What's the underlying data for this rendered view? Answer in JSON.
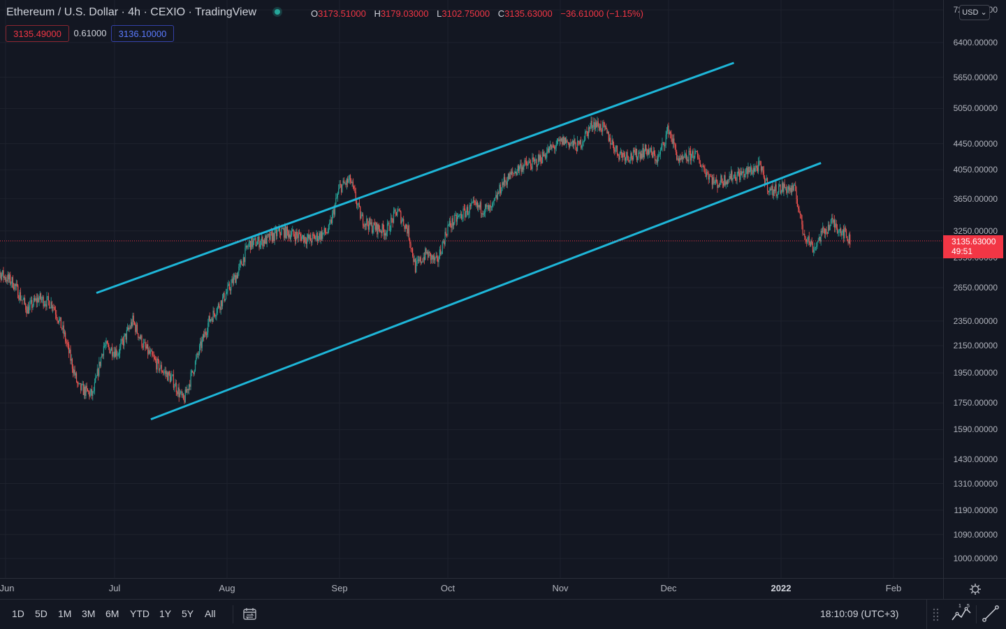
{
  "header": {
    "symbol_title": "Ethereum / U.S. Dollar · 4h · CEXIO · TradingView",
    "ohlc": {
      "o_label": "O",
      "o_value": "3173.51000",
      "h_label": "H",
      "h_value": "3179.03000",
      "l_label": "L",
      "l_value": "3102.75000",
      "c_label": "C",
      "c_value": "3135.63000",
      "change": "−36.61000 (−1.15%)"
    },
    "bid": "3135.49000",
    "spread": "0.61000",
    "ask": "3136.10000"
  },
  "price_axis": {
    "currency": "USD",
    "labels": [
      "7200.00000",
      "6400.00000",
      "5650.00000",
      "5050.00000",
      "4450.00000",
      "4050.00000",
      "3650.00000",
      "3250.00000",
      "2950.00000",
      "2650.00000",
      "2350.00000",
      "2150.00000",
      "1950.00000",
      "1750.00000",
      "1590.00000",
      "1430.00000",
      "1310.00000",
      "1190.00000",
      "1090.00000",
      "1000.00000"
    ],
    "last_price": "3135.63000",
    "countdown": "49:51"
  },
  "time_axis": {
    "labels": [
      {
        "text": "Jun",
        "bold": false
      },
      {
        "text": "Jul",
        "bold": false
      },
      {
        "text": "Aug",
        "bold": false
      },
      {
        "text": "Sep",
        "bold": false
      },
      {
        "text": "Oct",
        "bold": false
      },
      {
        "text": "Nov",
        "bold": false
      },
      {
        "text": "Dec",
        "bold": false
      },
      {
        "text": "2022",
        "bold": true
      },
      {
        "text": "Feb",
        "bold": false
      }
    ]
  },
  "bottom_bar": {
    "ranges": [
      "1D",
      "5D",
      "1M",
      "3M",
      "6M",
      "YTD",
      "1Y",
      "5Y",
      "All"
    ],
    "clock": "18:10:09 (UTC+3)",
    "icons": [
      "compare-range-icon",
      "drag-handle-icon",
      "indicator-chart-icon",
      "trendline-icon",
      "gear-icon"
    ]
  },
  "chart_data": {
    "type": "candlestick",
    "series_color_up": "#26a69a",
    "series_color_down": "#ef5350",
    "channel_color": "#1eb6d8",
    "price_scale": "log",
    "ylim": [
      950,
      7300
    ],
    "close_path": [
      {
        "x": "2021-05-27",
        "y": 2650
      },
      {
        "x": "2021-05-30",
        "y": 2800
      },
      {
        "x": "2021-06-03",
        "y": 2700
      },
      {
        "x": "2021-06-07",
        "y": 2450
      },
      {
        "x": "2021-06-10",
        "y": 2550
      },
      {
        "x": "2021-06-14",
        "y": 2500
      },
      {
        "x": "2021-06-17",
        "y": 2250
      },
      {
        "x": "2021-06-21",
        "y": 1850
      },
      {
        "x": "2021-06-25",
        "y": 1800
      },
      {
        "x": "2021-06-28",
        "y": 2150
      },
      {
        "x": "2021-07-02",
        "y": 2100
      },
      {
        "x": "2021-07-06",
        "y": 2350
      },
      {
        "x": "2021-07-09",
        "y": 2150
      },
      {
        "x": "2021-07-13",
        "y": 2000
      },
      {
        "x": "2021-07-17",
        "y": 1900
      },
      {
        "x": "2021-07-20",
        "y": 1760
      },
      {
        "x": "2021-07-23",
        "y": 2000
      },
      {
        "x": "2021-07-27",
        "y": 2350
      },
      {
        "x": "2021-07-31",
        "y": 2550
      },
      {
        "x": "2021-08-04",
        "y": 2800
      },
      {
        "x": "2021-08-07",
        "y": 3100
      },
      {
        "x": "2021-08-12",
        "y": 3150
      },
      {
        "x": "2021-08-16",
        "y": 3250
      },
      {
        "x": "2021-08-20",
        "y": 3200
      },
      {
        "x": "2021-08-24",
        "y": 3150
      },
      {
        "x": "2021-08-29",
        "y": 3250
      },
      {
        "x": "2021-09-01",
        "y": 3800
      },
      {
        "x": "2021-09-04",
        "y": 3900
      },
      {
        "x": "2021-09-07",
        "y": 3400
      },
      {
        "x": "2021-09-10",
        "y": 3300
      },
      {
        "x": "2021-09-14",
        "y": 3250
      },
      {
        "x": "2021-09-17",
        "y": 3500
      },
      {
        "x": "2021-09-20",
        "y": 3250
      },
      {
        "x": "2021-09-22",
        "y": 2850
      },
      {
        "x": "2021-09-25",
        "y": 3000
      },
      {
        "x": "2021-09-28",
        "y": 2900
      },
      {
        "x": "2021-10-01",
        "y": 3300
      },
      {
        "x": "2021-10-05",
        "y": 3450
      },
      {
        "x": "2021-10-08",
        "y": 3550
      },
      {
        "x": "2021-10-13",
        "y": 3500
      },
      {
        "x": "2021-10-16",
        "y": 3850
      },
      {
        "x": "2021-10-21",
        "y": 4100
      },
      {
        "x": "2021-10-25",
        "y": 4150
      },
      {
        "x": "2021-10-29",
        "y": 4350
      },
      {
        "x": "2021-11-02",
        "y": 4500
      },
      {
        "x": "2021-11-06",
        "y": 4400
      },
      {
        "x": "2021-11-10",
        "y": 4800
      },
      {
        "x": "2021-11-13",
        "y": 4700
      },
      {
        "x": "2021-11-17",
        "y": 4300
      },
      {
        "x": "2021-11-21",
        "y": 4250
      },
      {
        "x": "2021-11-25",
        "y": 4350
      },
      {
        "x": "2021-11-28",
        "y": 4200
      },
      {
        "x": "2021-12-01",
        "y": 4700
      },
      {
        "x": "2021-12-04",
        "y": 4150
      },
      {
        "x": "2021-12-08",
        "y": 4300
      },
      {
        "x": "2021-12-11",
        "y": 4050
      },
      {
        "x": "2021-12-14",
        "y": 3850
      },
      {
        "x": "2021-12-18",
        "y": 3950
      },
      {
        "x": "2021-12-22",
        "y": 4000
      },
      {
        "x": "2021-12-26",
        "y": 4100
      },
      {
        "x": "2021-12-29",
        "y": 3750
      },
      {
        "x": "2022-01-02",
        "y": 3800
      },
      {
        "x": "2022-01-05",
        "y": 3750
      },
      {
        "x": "2022-01-07",
        "y": 3250
      },
      {
        "x": "2022-01-10",
        "y": 3050
      },
      {
        "x": "2022-01-12",
        "y": 3200
      },
      {
        "x": "2022-01-15",
        "y": 3350
      },
      {
        "x": "2022-01-18",
        "y": 3250
      },
      {
        "x": "2022-01-20",
        "y": 3135
      }
    ],
    "channel": {
      "upper": [
        {
          "x": "2021-06-26",
          "y": 2600
        },
        {
          "x": "2021-12-19",
          "y": 5950
        }
      ],
      "lower": [
        {
          "x": "2021-07-11",
          "y": 1650
        },
        {
          "x": "2022-01-12",
          "y": 4150
        }
      ]
    },
    "last_price": 3135.63
  }
}
